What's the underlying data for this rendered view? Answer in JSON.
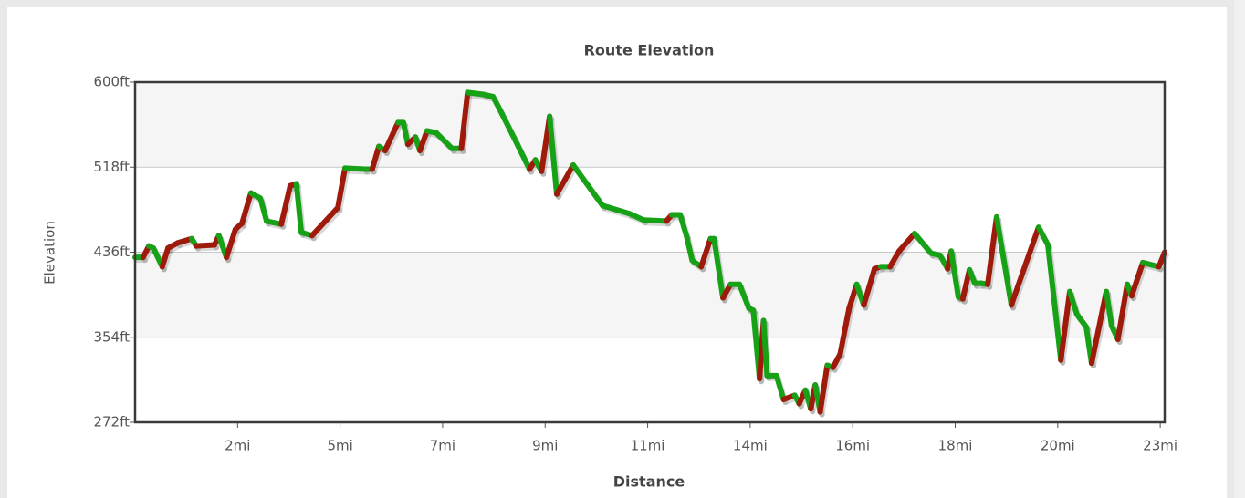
{
  "chart_data": {
    "type": "line",
    "title": "Route Elevation",
    "xlabel": "Distance",
    "ylabel": "Elevation",
    "x": [
      0,
      0.18,
      0.31,
      0.41,
      0.61,
      0.74,
      0.96,
      1.27,
      1.37,
      1.78,
      1.88,
      2.05,
      2.25,
      2.4,
      2.6,
      2.81,
      2.95,
      3.28,
      3.48,
      3.62,
      3.73,
      3.97,
      4.55,
      4.71,
      5.16,
      5.32,
      5.47,
      5.61,
      5.9,
      6.02,
      6.12,
      6.29,
      6.39,
      6.55,
      6.76,
      7.11,
      7.32,
      7.46,
      7.83,
      8.03,
      8.2,
      8.54,
      8.85,
      8.98,
      9.12,
      9.3,
      9.46,
      9.83,
      10.49,
      11.1,
      11.41,
      11.92,
      12.04,
      12.23,
      12.37,
      12.5,
      12.7,
      12.91,
      12.99,
      13.19,
      13.36,
      13.56,
      13.77,
      13.87,
      14.01,
      14.1,
      14.18,
      14.39,
      14.55,
      14.8,
      14.9,
      15.04,
      15.16,
      15.26,
      15.37,
      15.53,
      15.66,
      15.82,
      16.02,
      16.19,
      16.35,
      16.59,
      16.73,
      16.94,
      17.14,
      17.49,
      17.86,
      18.06,
      18.23,
      18.31,
      18.47,
      18.57,
      18.72,
      18.84,
      18.99,
      19.13,
      19.33,
      19.66,
      20.27,
      20.48,
      20.77,
      20.97,
      21.13,
      21.34,
      21.46,
      21.79,
      21.91,
      22.05,
      22.26,
      22.36,
      22.61,
      22.97,
      23.1
    ],
    "values": [
      431,
      431,
      442,
      440,
      422,
      440,
      445,
      449,
      442,
      443,
      452,
      431,
      458,
      464,
      493,
      488,
      466,
      463,
      500,
      502,
      455,
      452,
      479,
      517,
      516,
      516,
      538,
      534,
      561,
      561,
      540,
      547,
      534,
      553,
      551,
      536,
      536,
      590,
      588,
      586,
      572,
      543,
      516,
      525,
      514,
      567,
      492,
      520,
      481,
      473,
      467,
      466,
      472,
      472,
      452,
      428,
      422,
      449,
      449,
      392,
      405,
      405,
      382,
      380,
      314,
      370,
      317,
      317,
      294,
      298,
      290,
      303,
      285,
      308,
      282,
      327,
      325,
      338,
      382,
      405,
      385,
      420,
      422,
      422,
      437,
      454,
      435,
      433,
      420,
      437,
      393,
      391,
      419,
      406,
      406,
      405,
      470,
      385,
      460,
      443,
      332,
      398,
      376,
      364,
      329,
      398,
      365,
      352,
      405,
      394,
      426,
      422,
      436
    ],
    "up_color": "#9e1b0c",
    "down_color": "#17a117",
    "xlim": [
      0,
      23.1
    ],
    "xticks": [
      {
        "value": 2.3,
        "label": "2mi"
      },
      {
        "value": 4.6,
        "label": "5mi"
      },
      {
        "value": 6.9,
        "label": "7mi"
      },
      {
        "value": 9.2,
        "label": "9mi"
      },
      {
        "value": 11.5,
        "label": "11mi"
      },
      {
        "value": 13.8,
        "label": "14mi"
      },
      {
        "value": 16.1,
        "label": "16mi"
      },
      {
        "value": 18.4,
        "label": "18mi"
      },
      {
        "value": 20.7,
        "label": "20mi"
      },
      {
        "value": 23.0,
        "label": "23mi"
      }
    ],
    "ylim": [
      272,
      600
    ],
    "yticks": [
      {
        "value": 272,
        "label": "272ft"
      },
      {
        "value": 354,
        "label": "354ft"
      },
      {
        "value": 436,
        "label": "436ft"
      },
      {
        "value": 518,
        "label": "518ft"
      },
      {
        "value": 600,
        "label": "600ft"
      }
    ],
    "grid": true,
    "bands": true
  }
}
